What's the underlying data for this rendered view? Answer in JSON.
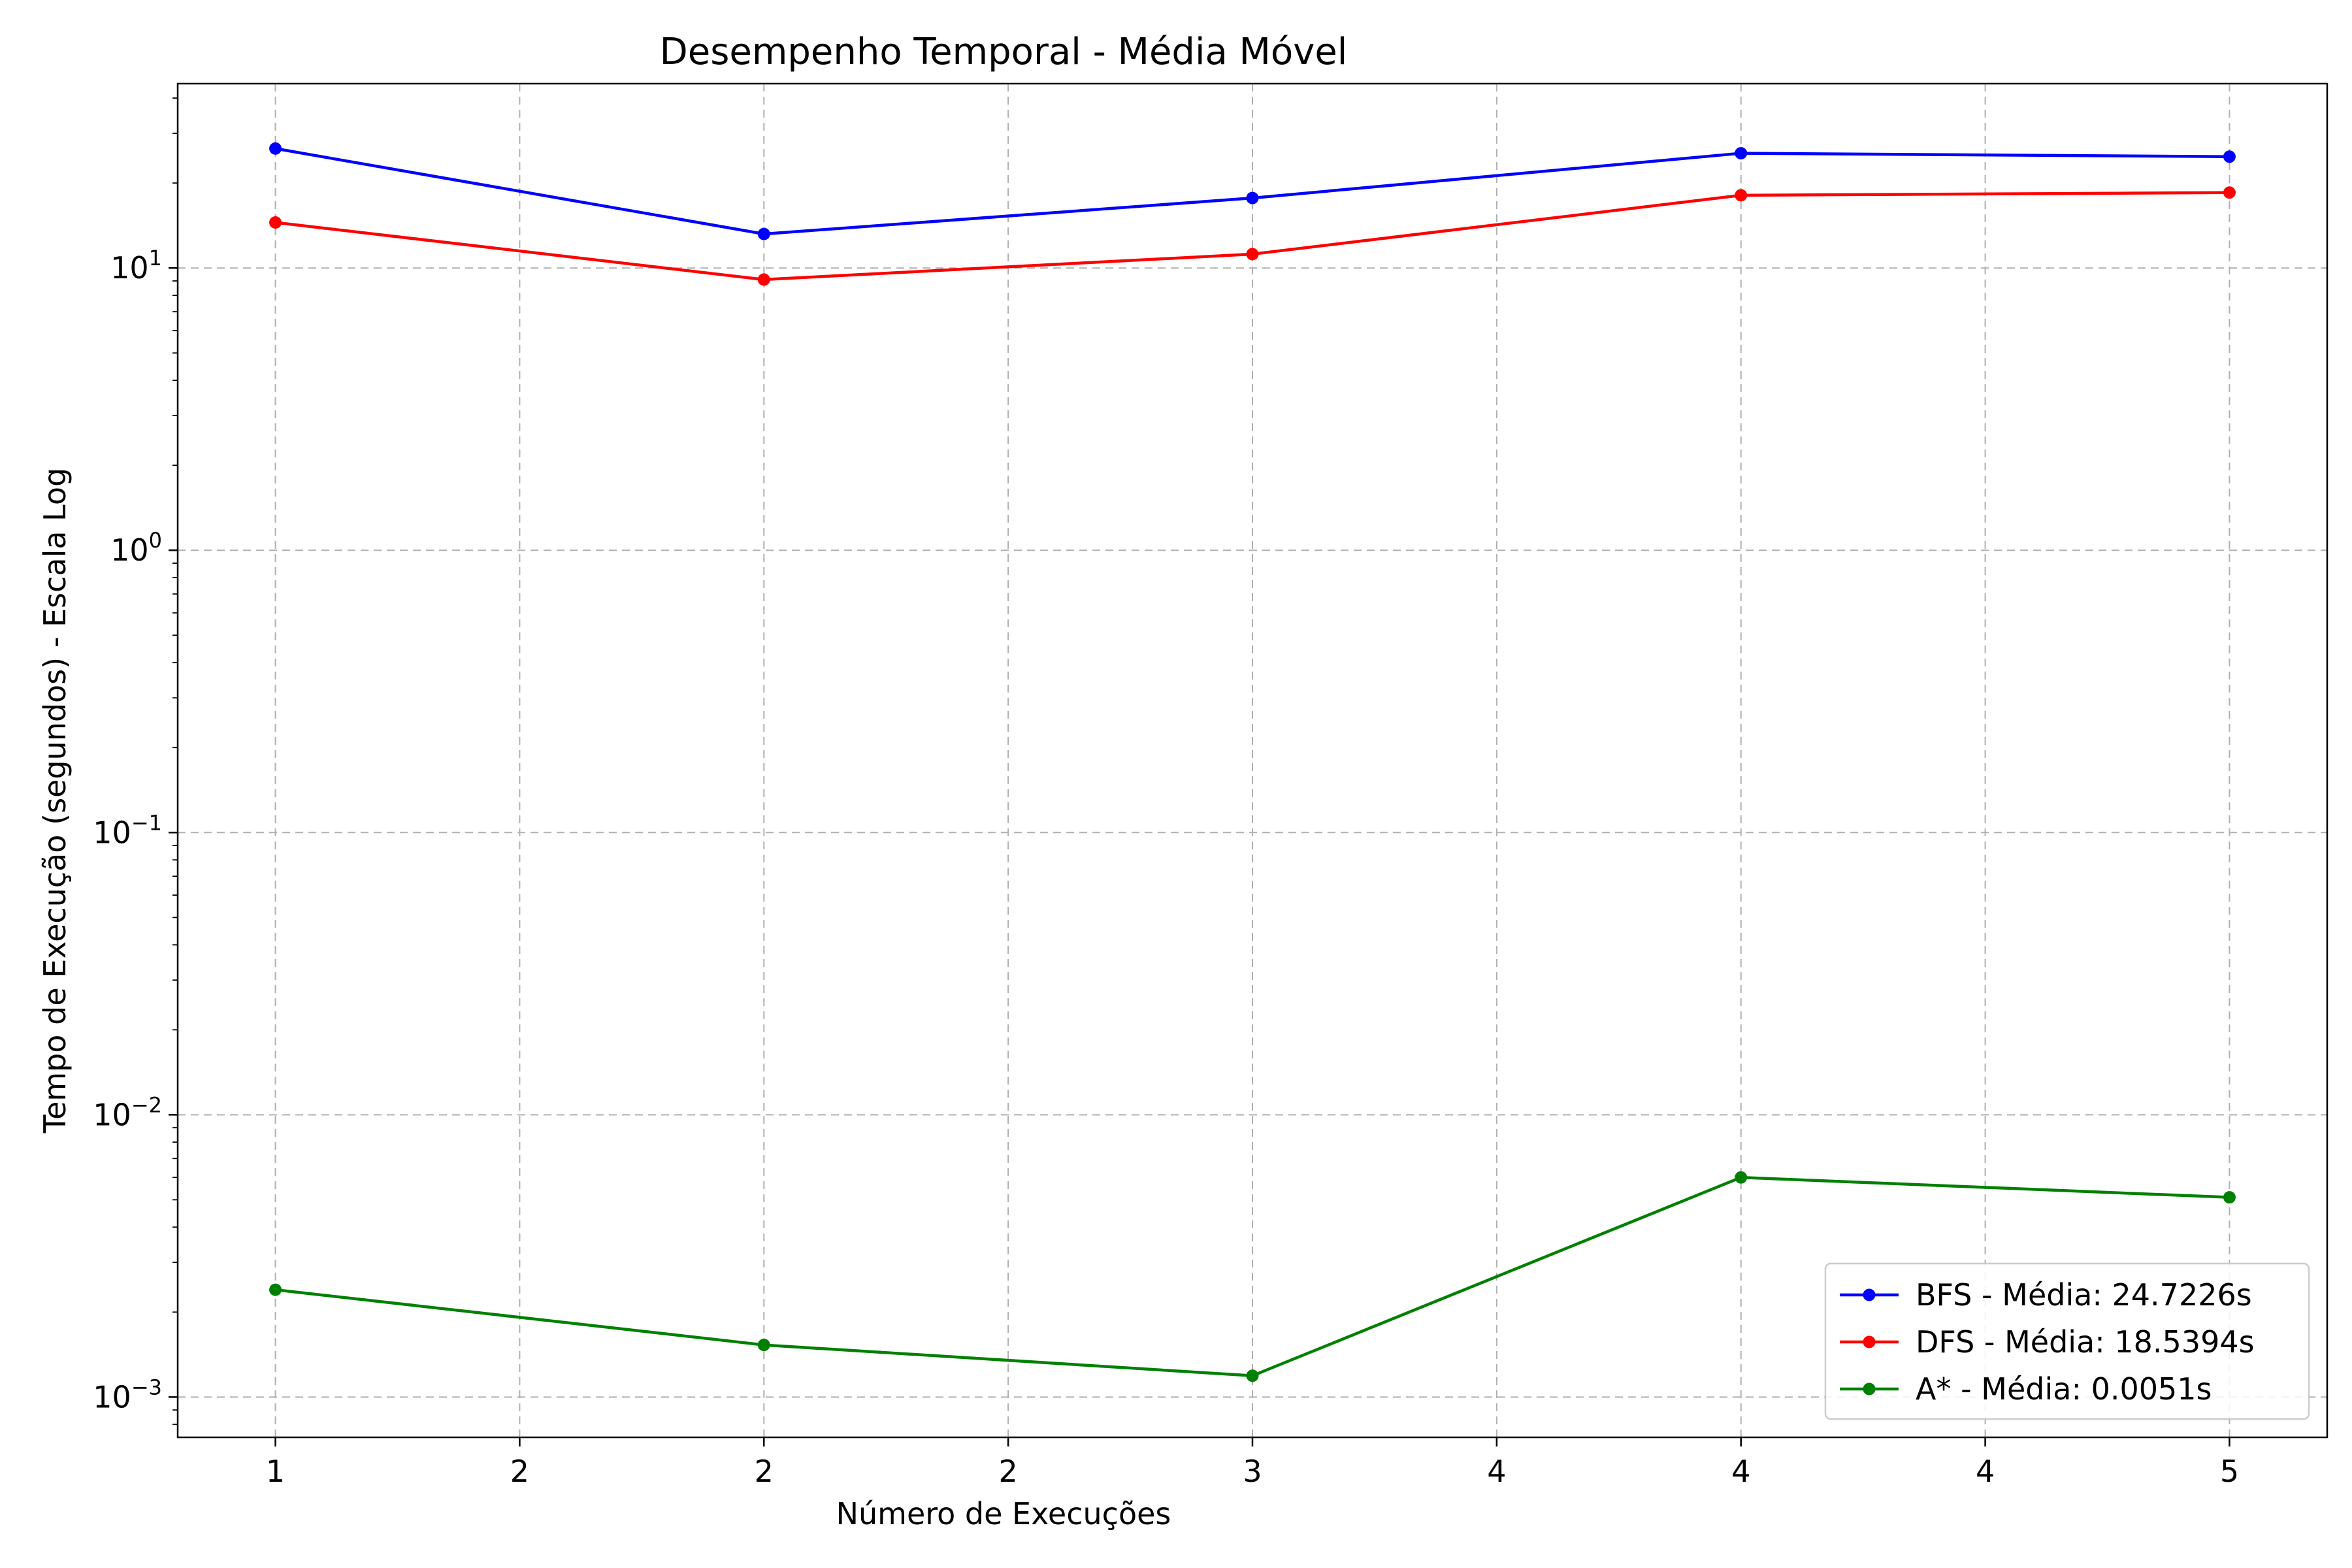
{
  "chart_data": {
    "type": "line",
    "title": "Desempenho Temporal - Média Móvel",
    "xlabel": "Número de Execuções",
    "ylabel": "Tempo de Execução (segundos) - Escala Log",
    "yscale": "log",
    "ylim": [
      0.00072,
      45
    ],
    "xlim": [
      0.8,
      5.2
    ],
    "grid": true,
    "legend_position": "lower-right",
    "x": [
      1,
      2,
      3,
      4,
      5
    ],
    "x_ticks": [
      {
        "value": 1,
        "label": "1"
      },
      {
        "value": 1.5,
        "label": "2"
      },
      {
        "value": 2,
        "label": "2"
      },
      {
        "value": 2.5,
        "label": "2"
      },
      {
        "value": 3,
        "label": "3"
      },
      {
        "value": 3.5,
        "label": "4"
      },
      {
        "value": 4,
        "label": "4"
      },
      {
        "value": 4.5,
        "label": "4"
      },
      {
        "value": 5,
        "label": "5"
      }
    ],
    "y_ticks": [
      {
        "value": 0.001,
        "base": "10",
        "exp": "−3"
      },
      {
        "value": 0.01,
        "base": "10",
        "exp": "−2"
      },
      {
        "value": 0.1,
        "base": "10",
        "exp": "−1"
      },
      {
        "value": 1,
        "base": "10",
        "exp": "0"
      },
      {
        "value": 10,
        "base": "10",
        "exp": "1"
      }
    ],
    "series": [
      {
        "name": "BFS - Média: 24.7226s",
        "color": "#0000ff",
        "values": [
          26.5,
          13.2,
          17.7,
          25.5,
          24.8
        ]
      },
      {
        "name": "DFS - Média: 18.5394s",
        "color": "#ff0000",
        "values": [
          14.5,
          9.1,
          11.2,
          18.1,
          18.5
        ]
      },
      {
        "name": "A* - Média: 0.0051s",
        "color": "#008000",
        "values": [
          0.0024,
          0.00153,
          0.00119,
          0.006,
          0.0051
        ]
      }
    ]
  }
}
